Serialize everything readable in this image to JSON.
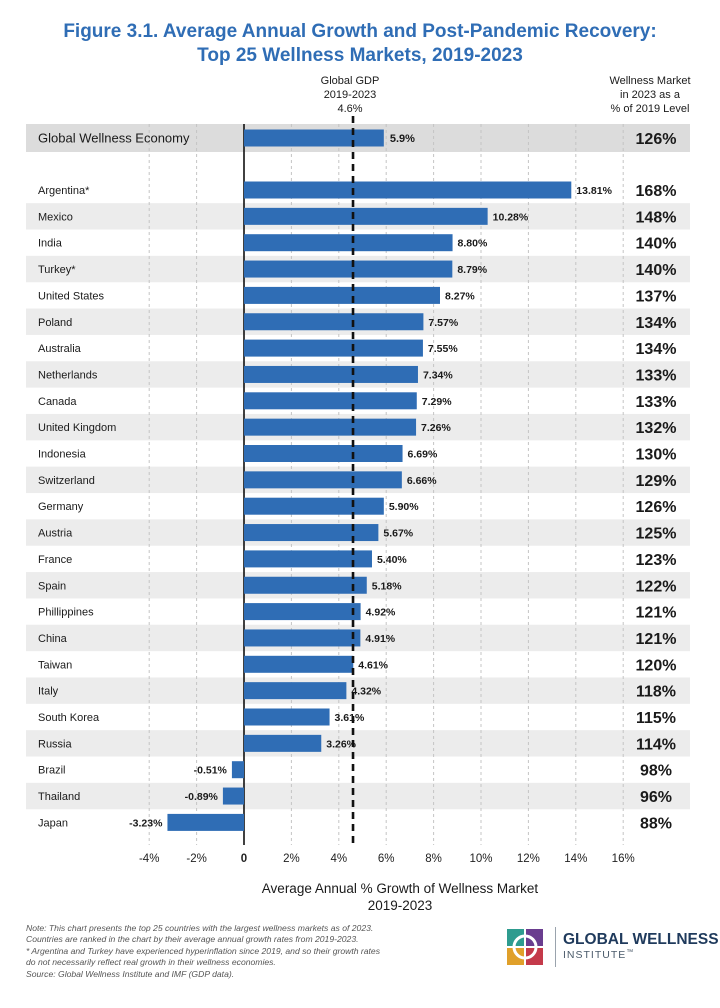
{
  "title": {
    "line1": "Figure 3.1. Average Annual Growth and Post-Pandemic Recovery:",
    "line2": "Top 25 Wellness Markets, 2019-2023"
  },
  "gdp_reference": {
    "line1": "Global GDP",
    "line2": "2019-2023",
    "value_label": "4.6%",
    "value": 4.6
  },
  "pct_column_header": {
    "line1": "Wellness Market",
    "line2": "in 2023 as a",
    "line3": "% of 2019 Level"
  },
  "x_axis_title": {
    "line1": "Average Annual % Growth of Wellness Market",
    "line2": "2019-2023"
  },
  "notes": [
    "Note: This chart presents the top 25 countries with the largest wellness markets as of 2023.",
    "Countries are ranked in the chart by their average annual growth rates from 2019-2023.",
    "* Argentina and Turkey have experienced hyperinflation since 2019, and so their growth rates",
    "do not necessarily reflect real growth in their wellness economies.",
    "Source: Global Wellness Institute and IMF (GDP data)."
  ],
  "logo": {
    "name": "GLOBAL WELLNESS",
    "sub": "INSTITUTE",
    "tm": "™",
    "icon": "gwi-logo-icon"
  },
  "colors": {
    "bar": "#2f6db5",
    "title": "#2f6db5",
    "band": "#ececec",
    "summary_band": "#dcdcdc"
  },
  "chart_data": {
    "type": "bar",
    "orientation": "horizontal",
    "xlim": [
      -5,
      17
    ],
    "x_ticks": [
      -4,
      -2,
      0,
      2,
      4,
      6,
      8,
      10,
      12,
      14,
      16
    ],
    "x_tick_labels": [
      "-4%",
      "-2%",
      "0",
      "2%",
      "4%",
      "6%",
      "8%",
      "10%",
      "12%",
      "14%",
      "16%"
    ],
    "grid": "vertical dashed",
    "reference_line": {
      "x": 4.6,
      "label": "Global GDP 2019-2023 4.6%"
    },
    "summary": {
      "category": "Global Wellness Economy",
      "value": 5.9,
      "label": "5.9%",
      "pct_2019": "126%"
    },
    "categories": [
      "Argentina*",
      "Mexico",
      "India",
      "Turkey*",
      "United States",
      "Poland",
      "Australia",
      "Netherlands",
      "Canada",
      "United Kingdom",
      "Indonesia",
      "Switzerland",
      "Germany",
      "Austria",
      "France",
      "Spain",
      "Phillippines",
      "China",
      "Taiwan",
      "Italy",
      "South Korea",
      "Russia",
      "Brazil",
      "Thailand",
      "Japan"
    ],
    "values": [
      13.81,
      10.28,
      8.8,
      8.79,
      8.27,
      7.57,
      7.55,
      7.34,
      7.29,
      7.26,
      6.69,
      6.66,
      5.9,
      5.67,
      5.4,
      5.18,
      4.92,
      4.91,
      4.61,
      4.32,
      3.61,
      3.26,
      -0.51,
      -0.89,
      -3.23
    ],
    "value_labels": [
      "13.81%",
      "10.28%",
      "8.80%",
      "8.79%",
      "8.27%",
      "7.57%",
      "7.55%",
      "7.34%",
      "7.29%",
      "7.26%",
      "6.69%",
      "6.66%",
      "5.90%",
      "5.67%",
      "5.40%",
      "5.18%",
      "4.92%",
      "4.91%",
      "4.61%",
      "4.32%",
      "3.61%",
      "3.26%",
      "-0.51%",
      "-0.89%",
      "-3.23%"
    ],
    "pct_of_2019": [
      "168%",
      "148%",
      "140%",
      "140%",
      "137%",
      "134%",
      "134%",
      "133%",
      "133%",
      "132%",
      "130%",
      "129%",
      "126%",
      "125%",
      "123%",
      "122%",
      "121%",
      "121%",
      "120%",
      "118%",
      "115%",
      "114%",
      "98%",
      "96%",
      "88%"
    ]
  }
}
